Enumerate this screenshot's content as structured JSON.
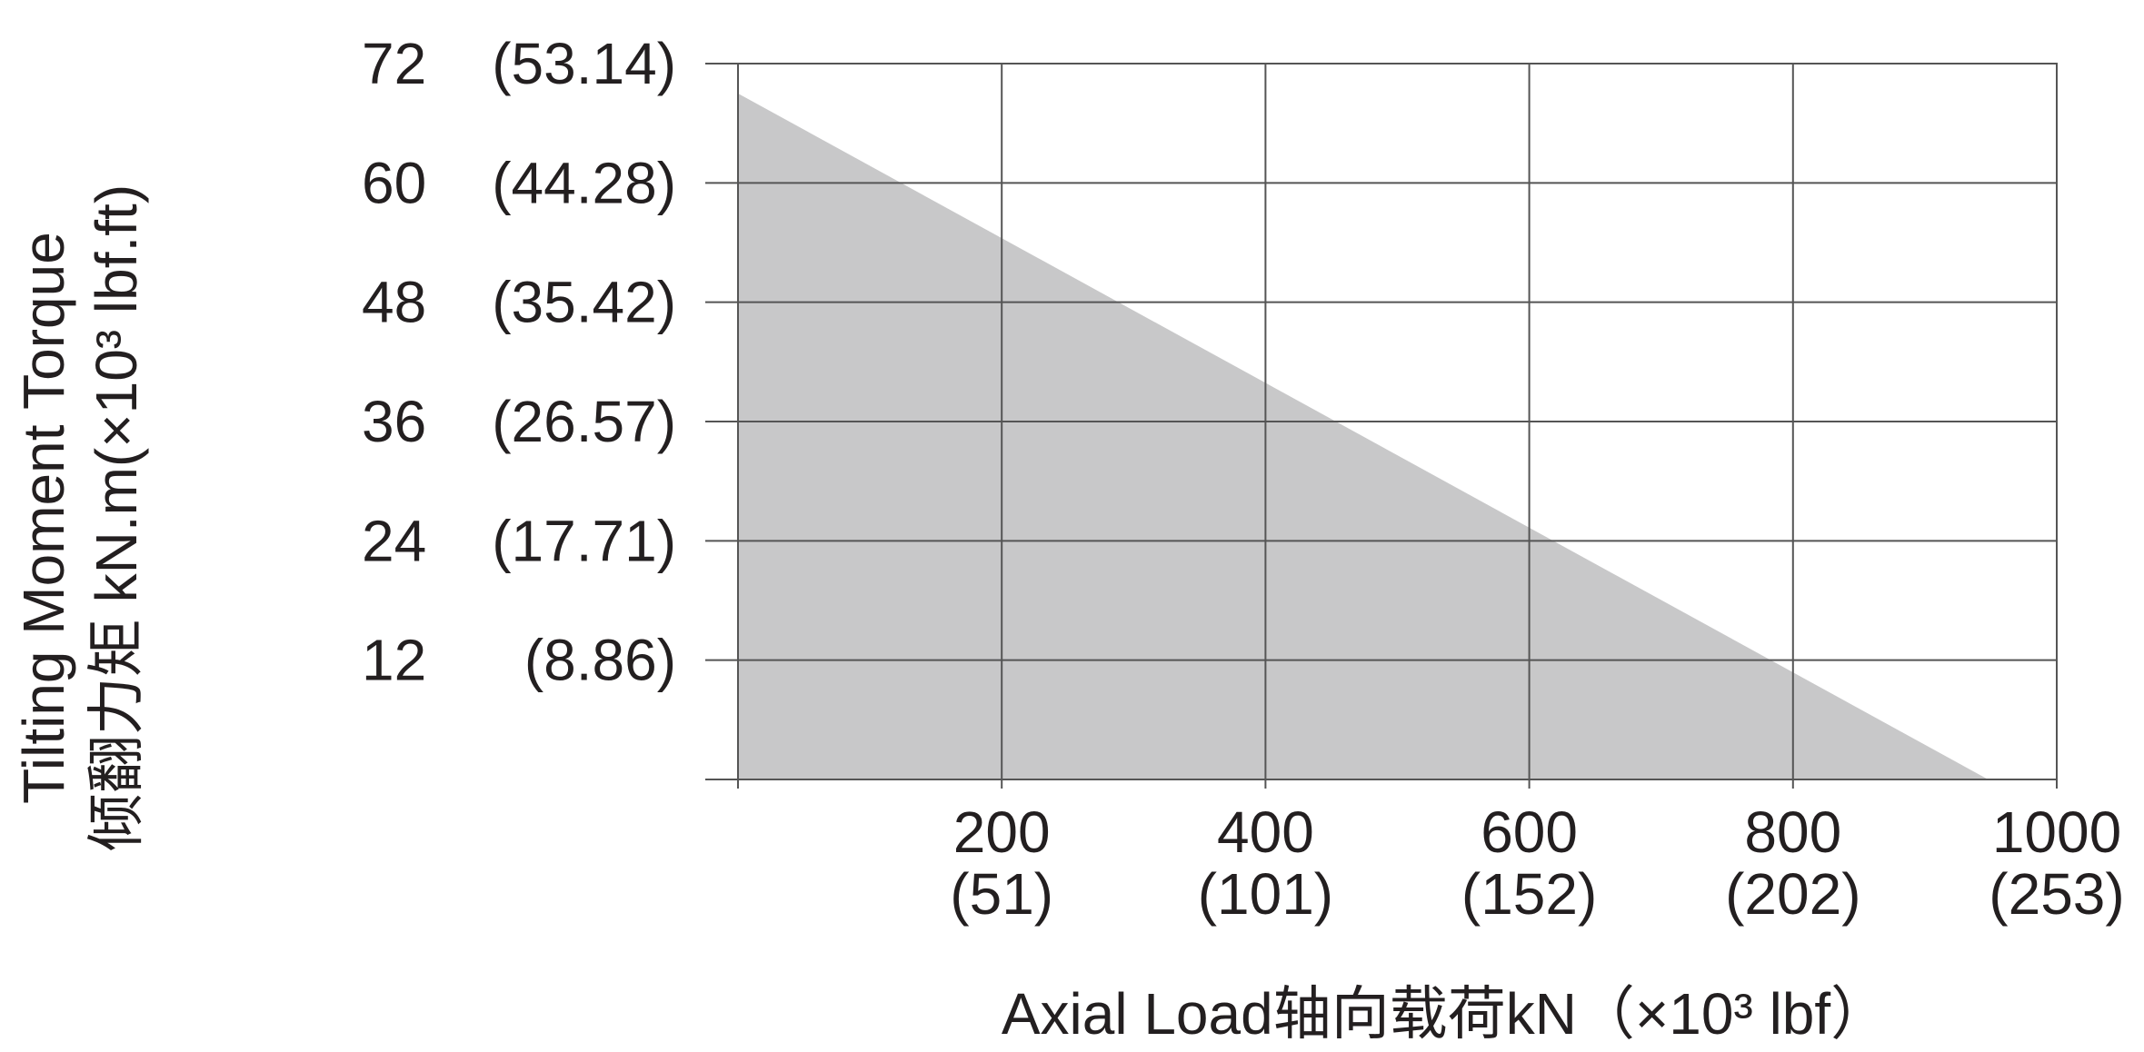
{
  "chart_data": {
    "type": "area",
    "title": "",
    "xlabel": "Axial Load轴向载荷kN（×10³ lbf）",
    "ylabel": {
      "line1": "Tilting Moment Torque",
      "line2": "倾翻力矩 kN.m(×10³ lbf.ft)"
    },
    "xlim": [
      0,
      1000
    ],
    "ylim": [
      0,
      72
    ],
    "grid": true,
    "x_ticks": [
      {
        "value": 200,
        "label": "200",
        "sub": "(51)"
      },
      {
        "value": 400,
        "label": "400",
        "sub": "(101)"
      },
      {
        "value": 600,
        "label": "600",
        "sub": "(152)"
      },
      {
        "value": 800,
        "label": "800",
        "sub": "(202)"
      },
      {
        "value": 1000,
        "label": "1000",
        "sub": "(253)"
      }
    ],
    "y_ticks": [
      {
        "value": 12,
        "label": "12",
        "sub": "(8.86)"
      },
      {
        "value": 24,
        "label": "24",
        "sub": "(17.71)"
      },
      {
        "value": 36,
        "label": "36",
        "sub": "(26.57)"
      },
      {
        "value": 48,
        "label": "48",
        "sub": "(35.42)"
      },
      {
        "value": 60,
        "label": "60",
        "sub": "(44.28)"
      },
      {
        "value": 72,
        "label": "72",
        "sub": "(53.14)"
      }
    ],
    "series": [
      {
        "points": [
          [
            0,
            69
          ],
          [
            948,
            0
          ]
        ],
        "fill": "#c8c8c9"
      }
    ]
  }
}
